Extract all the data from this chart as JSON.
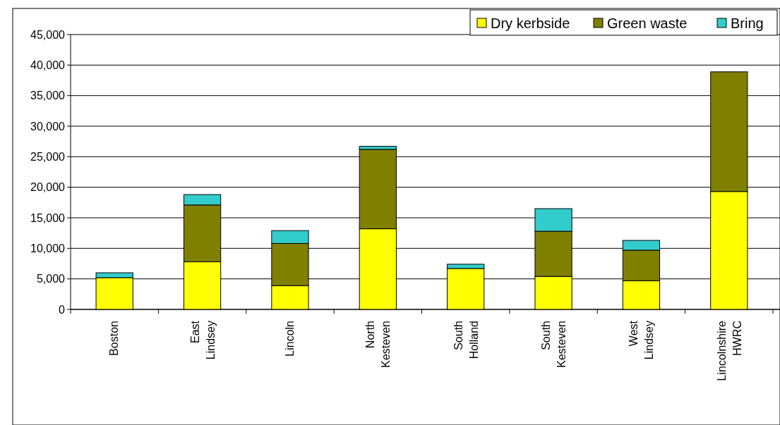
{
  "chart_data": {
    "type": "bar",
    "stacked": true,
    "categories": [
      "Boston",
      "East Lindsey",
      "Lincoln",
      "North Kesteven",
      "South Holland",
      "South Kesteven",
      "West Lindsey",
      "Lincolnshire HWRC"
    ],
    "series": [
      {
        "name": "Dry kerbside",
        "color": "#ffff00",
        "values": [
          5200,
          7800,
          3900,
          13200,
          6700,
          5400,
          4700,
          19300
        ]
      },
      {
        "name": "Green waste",
        "color": "#808000",
        "values": [
          0,
          9300,
          6900,
          13000,
          0,
          7400,
          5000,
          19600
        ]
      },
      {
        "name": "Bring",
        "color": "#33cccc",
        "values": [
          800,
          1700,
          2100,
          500,
          700,
          3700,
          1600,
          0
        ]
      }
    ],
    "ylim": [
      0,
      45000
    ],
    "yticks": [
      {
        "value": 0,
        "label": "0"
      },
      {
        "value": 5000,
        "label": "5,000"
      },
      {
        "value": 10000,
        "label": "10,000"
      },
      {
        "value": 15000,
        "label": "15,000"
      },
      {
        "value": 20000,
        "label": "20,000"
      },
      {
        "value": 25000,
        "label": "25,000"
      },
      {
        "value": 30000,
        "label": "30,000"
      },
      {
        "value": 35000,
        "label": "35,000"
      },
      {
        "value": 40000,
        "label": "40,000"
      },
      {
        "value": 45000,
        "label": "45,000"
      }
    ],
    "grid": "y",
    "legend": "top right"
  }
}
